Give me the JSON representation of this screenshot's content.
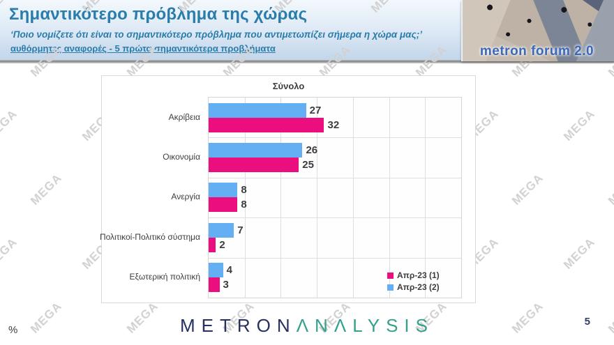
{
  "header": {
    "title": "Σημαντικότερο πρόβλημα της χώρας",
    "subtitle": "‘Ποιο νομίζετε ότι  είναι το σημαντικότερο πρόβλημα που αντιμετωπίζει σήμερα η χώρα μας;’",
    "note": "αυθόρμητες αναφορές - 5 πρώτα σημαντικότερα προβλήματα"
  },
  "logo": {
    "text": "metron forum 2.0"
  },
  "chart_data": {
    "type": "bar",
    "orientation": "horizontal",
    "title": "Σύνολο",
    "categories": [
      "Ακρίβεια",
      "Οικονομία",
      "Ανεργία",
      "Πολιτικοί-Πολιτικό σύστημα",
      "Εξωτερική πολιτική"
    ],
    "series": [
      {
        "name": "Απρ-23 (1)",
        "color": "#eb0e7e",
        "values": [
          32,
          25,
          8,
          2,
          3
        ]
      },
      {
        "name": "Απρ-23 (2)",
        "color": "#64aef3",
        "values": [
          27,
          26,
          8,
          7,
          4
        ]
      }
    ],
    "series_draw_order_top_to_bottom": [
      "Απρ-23 (2)",
      "Απρ-23 (1)"
    ],
    "values_unit": "%",
    "xlim": [
      0,
      70
    ],
    "gridline_step": 10,
    "grid": true,
    "legend_position": "inside-bottom-right"
  },
  "footer": {
    "brand_primary": "METRON",
    "brand_secondary": "ΛNΛLYSIS",
    "unit_label": "%",
    "page_number": "5"
  },
  "watermark": {
    "text": "MEGA"
  }
}
